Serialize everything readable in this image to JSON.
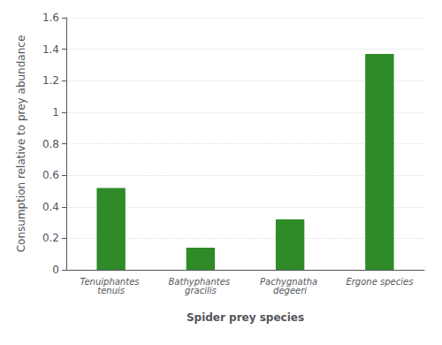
{
  "chart_data": {
    "type": "bar",
    "categories": [
      "Tenuiphantes tenuis",
      "Bathyphantes gracilis",
      "Pachygnatha degeeri",
      "Ergone species"
    ],
    "values": [
      0.52,
      0.14,
      0.32,
      1.37
    ],
    "color": "#2e8b28",
    "xlabel": "Spider prey species",
    "ylabel": "Consumption relative to prey abundance",
    "ylim": [
      0,
      1.6
    ],
    "yticks": [
      0,
      0.2,
      0.4,
      0.6,
      0.8,
      1.0,
      1.2,
      1.4,
      1.6
    ],
    "grid": true
  }
}
